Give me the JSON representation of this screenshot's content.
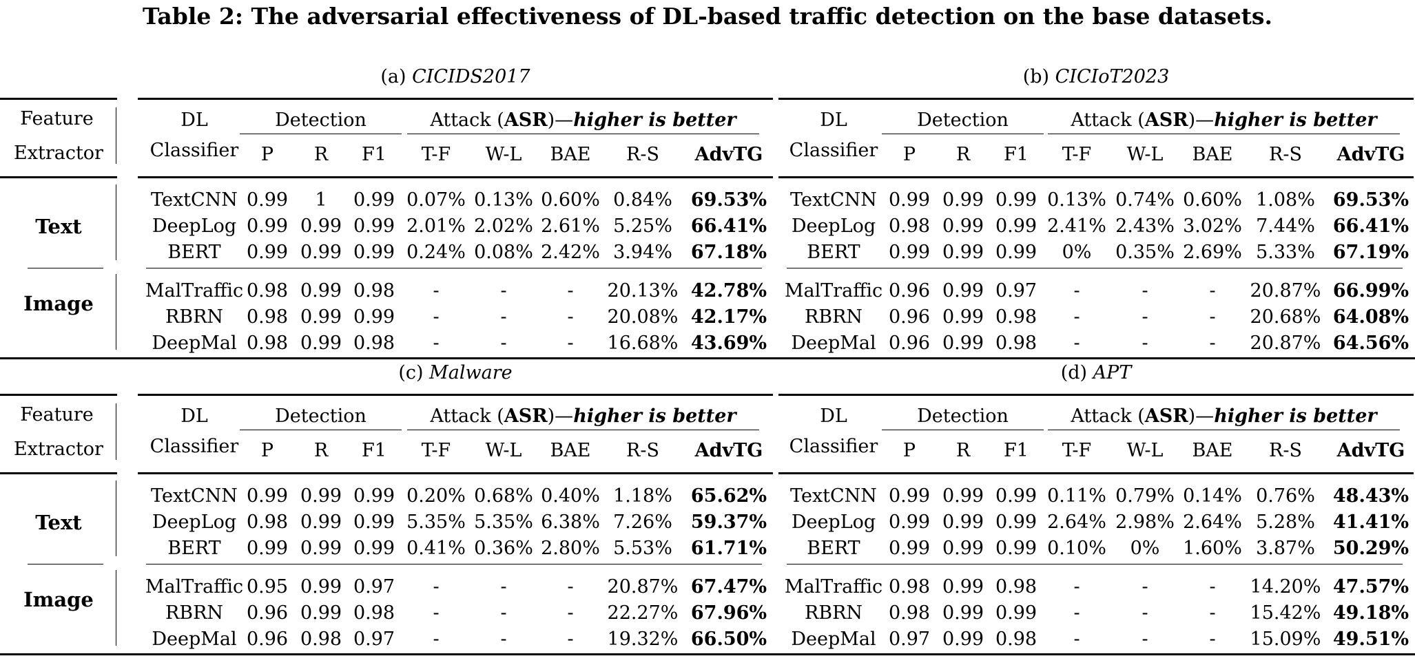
{
  "caption": "Table 2: The adversarial effectiveness of DL-based traffic detection on the base datasets.",
  "header": {
    "feature": "Feature",
    "extractor": "Extractor",
    "dl": "DL",
    "classifier": "Classifier",
    "detection": "Detection",
    "attack_prefix": "Attack (",
    "attack_asr": "ASR",
    "attack_mid": ")—",
    "attack_suffix": "higher is better",
    "cols": [
      "P",
      "R",
      "F1",
      "T-F",
      "W-L",
      "BAE",
      "R-S",
      "AdvTG"
    ]
  },
  "groups": [
    "Text",
    "Image"
  ],
  "panels": [
    {
      "label": "(a) ",
      "dataset": "CICIDS2017",
      "rows": [
        [
          "TextCNN",
          "0.99",
          "1",
          "0.99",
          "0.07%",
          "0.13%",
          "0.60%",
          "0.84%",
          "69.53%"
        ],
        [
          "DeepLog",
          "0.99",
          "0.99",
          "0.99",
          "2.01%",
          "2.02%",
          "2.61%",
          "5.25%",
          "66.41%"
        ],
        [
          "BERT",
          "0.99",
          "0.99",
          "0.99",
          "0.24%",
          "0.08%",
          "2.42%",
          "3.94%",
          "67.18%"
        ],
        [
          "MalTraffic",
          "0.98",
          "0.99",
          "0.98",
          "-",
          "-",
          "-",
          "20.13%",
          "42.78%"
        ],
        [
          "RBRN",
          "0.98",
          "0.99",
          "0.99",
          "-",
          "-",
          "-",
          "20.08%",
          "42.17%"
        ],
        [
          "DeepMal",
          "0.98",
          "0.99",
          "0.98",
          "-",
          "-",
          "-",
          "16.68%",
          "43.69%"
        ]
      ]
    },
    {
      "label": "(b) ",
      "dataset": "CICIoT2023",
      "rows": [
        [
          "TextCNN",
          "0.99",
          "0.99",
          "0.99",
          "0.13%",
          "0.74%",
          "0.60%",
          "1.08%",
          "69.53%"
        ],
        [
          "DeepLog",
          "0.98",
          "0.99",
          "0.99",
          "2.41%",
          "2.43%",
          "3.02%",
          "7.44%",
          "66.41%"
        ],
        [
          "BERT",
          "0.99",
          "0.99",
          "0.99",
          "0%",
          "0.35%",
          "2.69%",
          "5.33%",
          "67.19%"
        ],
        [
          "MalTraffic",
          "0.96",
          "0.99",
          "0.97",
          "-",
          "-",
          "-",
          "20.87%",
          "66.99%"
        ],
        [
          "RBRN",
          "0.96",
          "0.99",
          "0.98",
          "-",
          "-",
          "-",
          "20.68%",
          "64.08%"
        ],
        [
          "DeepMal",
          "0.96",
          "0.99",
          "0.98",
          "-",
          "-",
          "-",
          "20.87%",
          "64.56%"
        ]
      ]
    },
    {
      "label": "(c) ",
      "dataset": "Malware",
      "rows": [
        [
          "TextCNN",
          "0.99",
          "0.99",
          "0.99",
          "0.20%",
          "0.68%",
          "0.40%",
          "1.18%",
          "65.62%"
        ],
        [
          "DeepLog",
          "0.98",
          "0.99",
          "0.99",
          "5.35%",
          "5.35%",
          "6.38%",
          "7.26%",
          "59.37%"
        ],
        [
          "BERT",
          "0.99",
          "0.99",
          "0.99",
          "0.41%",
          "0.36%",
          "2.80%",
          "5.53%",
          "61.71%"
        ],
        [
          "MalTraffic",
          "0.95",
          "0.99",
          "0.97",
          "-",
          "-",
          "-",
          "20.87%",
          "67.47%"
        ],
        [
          "RBRN",
          "0.96",
          "0.99",
          "0.98",
          "-",
          "-",
          "-",
          "22.27%",
          "67.96%"
        ],
        [
          "DeepMal",
          "0.96",
          "0.98",
          "0.97",
          "-",
          "-",
          "-",
          "19.32%",
          "66.50%"
        ]
      ]
    },
    {
      "label": "(d) ",
      "dataset": "APT",
      "rows": [
        [
          "TextCNN",
          "0.99",
          "0.99",
          "0.99",
          "0.11%",
          "0.79%",
          "0.14%",
          "0.76%",
          "48.43%"
        ],
        [
          "DeepLog",
          "0.99",
          "0.99",
          "0.99",
          "2.64%",
          "2.98%",
          "2.64%",
          "5.28%",
          "41.41%"
        ],
        [
          "BERT",
          "0.99",
          "0.99",
          "0.99",
          "0.10%",
          "0%",
          "1.60%",
          "3.87%",
          "50.29%"
        ],
        [
          "MalTraffic",
          "0.98",
          "0.99",
          "0.98",
          "-",
          "-",
          "-",
          "14.20%",
          "47.57%"
        ],
        [
          "RBRN",
          "0.98",
          "0.99",
          "0.99",
          "-",
          "-",
          "-",
          "15.42%",
          "49.18%"
        ],
        [
          "DeepMal",
          "0.97",
          "0.99",
          "0.98",
          "-",
          "-",
          "-",
          "15.09%",
          "49.51%"
        ]
      ]
    }
  ]
}
